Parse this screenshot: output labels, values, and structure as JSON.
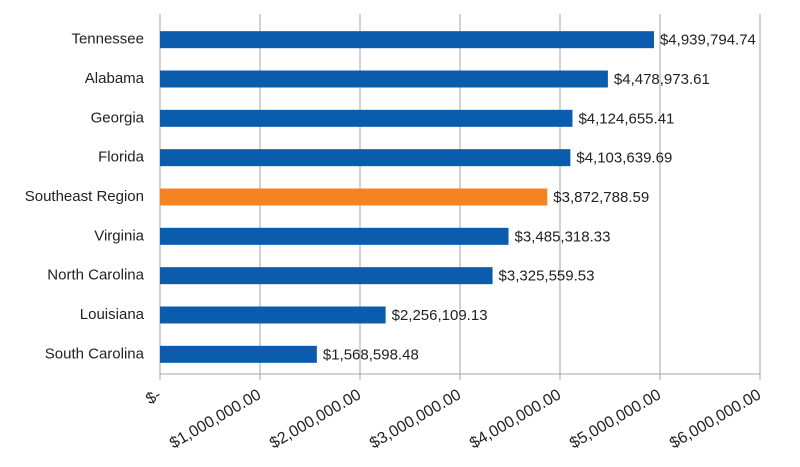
{
  "chart_data": {
    "type": "hbar",
    "categories": [
      "Tennessee",
      "Alabama",
      "Georgia",
      "Florida",
      "Southeast Region",
      "Virginia",
      "North Carolina",
      "Louisiana",
      "South Carolina"
    ],
    "values": [
      4939794.74,
      4478973.61,
      4124655.41,
      4103639.69,
      3872788.59,
      3485318.33,
      3325559.53,
      2256109.13,
      1568598.48
    ],
    "value_labels": [
      "$4,939,794.74",
      "$4,478,973.61",
      "$4,124,655.41",
      "$4,103,639.69",
      "$3,872,788.59",
      "$3,485,318.33",
      "$3,325,559.53",
      "$2,256,109.13",
      "$1,568,598.48"
    ],
    "colors": [
      "#0b5cad",
      "#0b5cad",
      "#0b5cad",
      "#0b5cad",
      "#f4841f",
      "#0b5cad",
      "#0b5cad",
      "#0b5cad",
      "#0b5cad"
    ],
    "xlim": [
      0,
      6000000
    ],
    "xticks": [
      {
        "value": 0,
        "label": "$-"
      },
      {
        "value": 1000000,
        "label": "$1,000,000.00"
      },
      {
        "value": 2000000,
        "label": "$2,000,000.00"
      },
      {
        "value": 3000000,
        "label": "$3,000,000.00"
      },
      {
        "value": 4000000,
        "label": "$4,000,000.00"
      },
      {
        "value": 5000000,
        "label": "$5,000,000.00"
      },
      {
        "value": 6000000,
        "label": "$6,000,000.00"
      }
    ],
    "grid": true
  }
}
